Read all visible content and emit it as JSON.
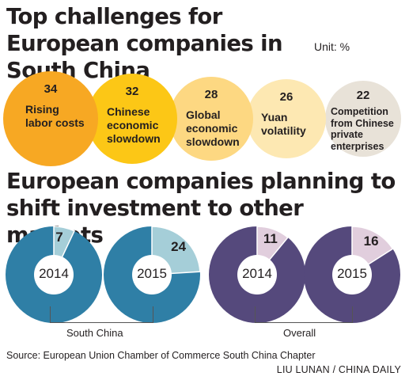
{
  "title1": "Top challenges for European companies in South China",
  "unit": "Unit: %",
  "challenges": [
    {
      "value": "34",
      "label": "Rising labor costs",
      "color": "#f7a823"
    },
    {
      "value": "32",
      "label": "Chinese economic slowdown",
      "color": "#fcc716"
    },
    {
      "value": "28",
      "label": "Global economic slowdown",
      "color": "#fdd882"
    },
    {
      "value": "26",
      "label": "Yuan volatility",
      "color": "#fde8b2"
    },
    {
      "value": "22",
      "label": "Competition from Chinese private enterprises",
      "color": "#e8e2d8"
    }
  ],
  "title2": "European companies planning to shift investment to other markets",
  "groups": [
    {
      "label": "South China",
      "base_color": "#2f7fa6",
      "slice_color": "#a5ced8"
    },
    {
      "label": "Overall",
      "base_color": "#55497c",
      "slice_color": "#e1cedd"
    }
  ],
  "donuts": [
    {
      "year": "2014",
      "value": 7,
      "group": "South China"
    },
    {
      "year": "2015",
      "value": 24,
      "group": "South China"
    },
    {
      "year": "2014",
      "value": 11,
      "group": "Overall"
    },
    {
      "year": "2015",
      "value": 16,
      "group": "Overall"
    }
  ],
  "source": "Source: European Union Chamber of Commerce South China Chapter",
  "credit": "LIU LUNAN / CHINA DAILY",
  "chart_data": [
    {
      "type": "bar",
      "title": "Top challenges for European companies in South China",
      "unit": "%",
      "categories": [
        "Rising labor costs",
        "Chinese economic slowdown",
        "Global economic slowdown",
        "Yuan volatility",
        "Competition from Chinese private enterprises"
      ],
      "values": [
        34,
        32,
        28,
        26,
        22
      ]
    },
    {
      "type": "pie",
      "title": "European companies planning to shift investment to other markets",
      "unit": "%",
      "categories": [
        "2014",
        "2015"
      ],
      "series": [
        {
          "name": "South China",
          "values": [
            7,
            24
          ]
        },
        {
          "name": "Overall",
          "values": [
            11,
            16
          ]
        }
      ]
    }
  ]
}
